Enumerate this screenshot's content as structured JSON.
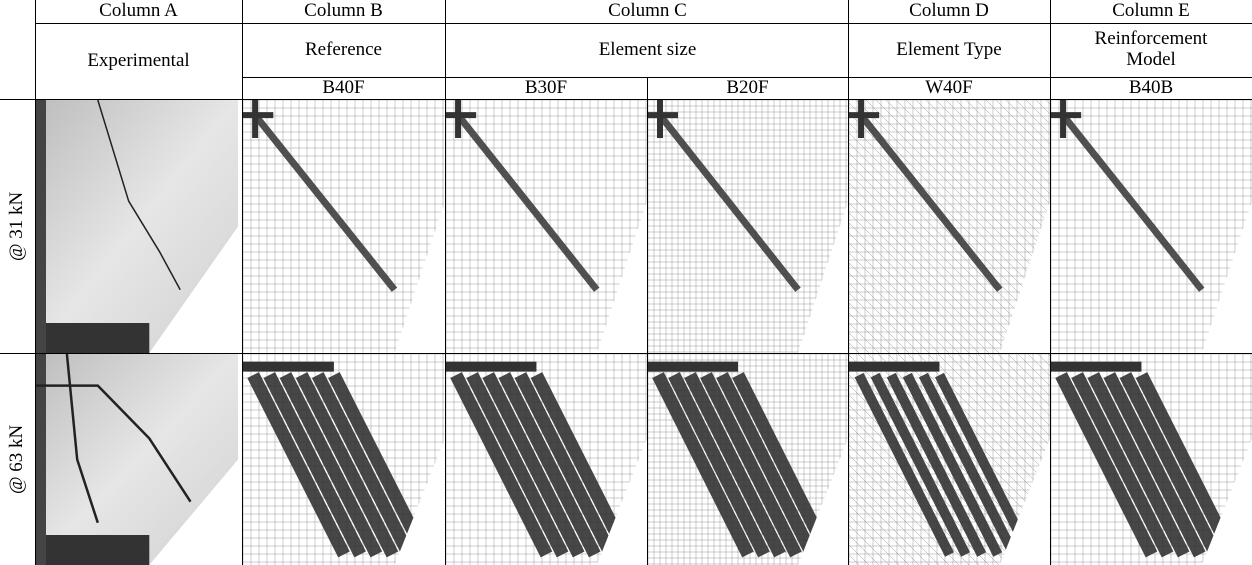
{
  "table": {
    "header": {
      "columns": [
        "Column A",
        "Column B",
        "Column C",
        "Column D",
        "Column E"
      ],
      "groups": [
        "Experimental",
        "Reference",
        "Element size",
        "Element Type",
        "Reinforcement Model"
      ],
      "specimens": [
        "B40F",
        "B30F",
        "B20F",
        "W40F",
        "B40B"
      ]
    },
    "rows": [
      "@ 31 kN",
      "@ 63 kN"
    ]
  }
}
